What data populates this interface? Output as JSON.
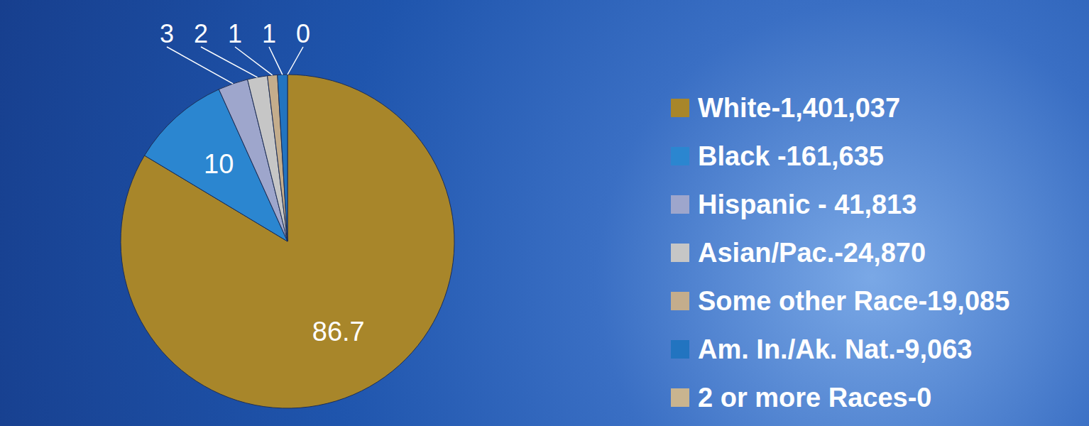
{
  "chart_data": {
    "type": "pie",
    "categories": [
      "White-1,401,037",
      "Black -161,635",
      "Hispanic - 41,813",
      "Asian/Pac.-24,870",
      "Some other Race-19,085",
      "Am. In./Ak. Nat.-9,063",
      "2 or more Races-0"
    ],
    "values": [
      86.7,
      10,
      3,
      2,
      1,
      1,
      0
    ],
    "colors": [
      "#a8862a",
      "#2b86d0",
      "#9ea6cc",
      "#c6c6c6",
      "#c4ad8c",
      "#2274c0",
      "#c9b48f"
    ],
    "data_labels": true,
    "legend": "right"
  }
}
